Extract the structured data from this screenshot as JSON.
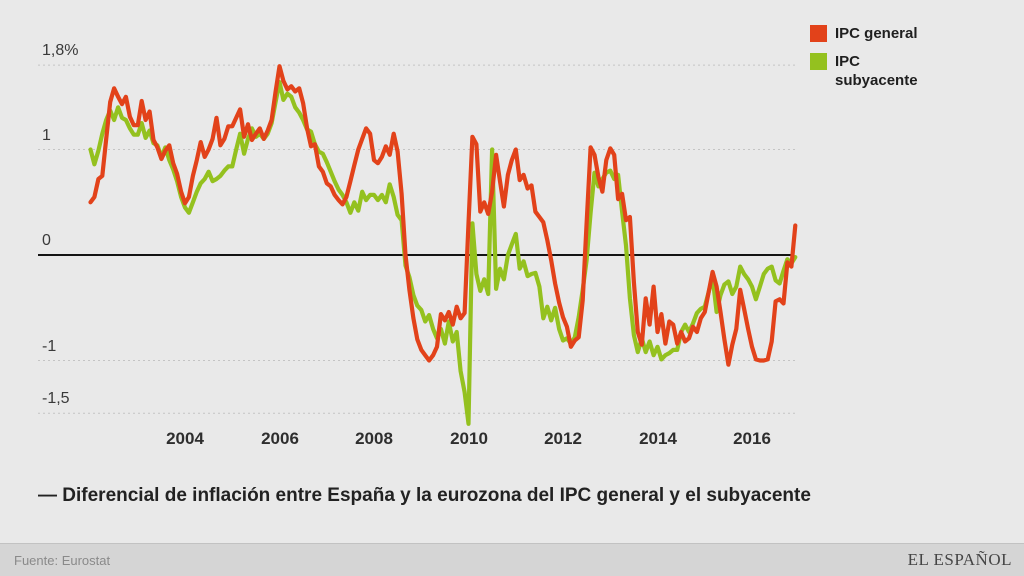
{
  "title": {
    "text": "— Diferencial de inflación entre España y la eurozona del IPC general y el subyacente"
  },
  "footer": {
    "source": "Fuente: Eurostat",
    "brand": "EL ESPAÑOL"
  },
  "colors": {
    "background": "#e9e9e9",
    "footer_background": "#d5d5d5",
    "gridline": "#c4c4c4",
    "zero_line": "#141414"
  },
  "chart_data": {
    "type": "line",
    "title": "— Diferencial de inflación entre España y la eurozona del IPC general y el subyacente",
    "xlabel": "",
    "ylabel": "",
    "unit": "%",
    "grid": "horizontal-dashed",
    "legend_position": "top-right",
    "start_year": 2002,
    "points_per_month": 1,
    "x_range": [
      2002,
      2017
    ],
    "ylim": [
      -1.75,
      2.0
    ],
    "x_ticks": [
      "2004",
      "2006",
      "2008",
      "2010",
      "2012",
      "2014",
      "2016"
    ],
    "x_tick_years": [
      2004,
      2006,
      2008,
      2010,
      2012,
      2014,
      2016
    ],
    "y_ticks": [
      {
        "label": "1,8%",
        "value": 1.8,
        "line": "dashed"
      },
      {
        "label": "1",
        "value": 1.0,
        "line": "dashed"
      },
      {
        "label": "0",
        "value": 0.0,
        "line": "solid"
      },
      {
        "label": "-1",
        "value": -1.0,
        "line": "dashed"
      },
      {
        "label": "-1,5",
        "value": -1.5,
        "line": "dashed"
      }
    ],
    "series": [
      {
        "name": "IPC general",
        "color": "#e2421a",
        "values": [
          0.5,
          0.55,
          0.72,
          0.75,
          1.1,
          1.45,
          1.58,
          1.5,
          1.43,
          1.5,
          1.31,
          1.23,
          1.23,
          1.46,
          1.28,
          1.36,
          1.09,
          1.02,
          0.91,
          0.99,
          1.04,
          0.87,
          0.77,
          0.6,
          0.49,
          0.55,
          0.75,
          0.9,
          1.07,
          0.93,
          1.0,
          1.1,
          1.3,
          1.04,
          1.1,
          1.22,
          1.22,
          1.3,
          1.38,
          1.12,
          1.24,
          1.09,
          1.15,
          1.2,
          1.1,
          1.18,
          1.28,
          1.55,
          1.79,
          1.65,
          1.57,
          1.6,
          1.55,
          1.58,
          1.44,
          1.2,
          1.03,
          1.05,
          0.84,
          0.79,
          0.68,
          0.65,
          0.57,
          0.52,
          0.48,
          0.55,
          0.7,
          0.85,
          1.0,
          1.1,
          1.2,
          1.15,
          0.9,
          0.87,
          0.93,
          1.03,
          0.95,
          1.15,
          0.98,
          0.58,
          0.0,
          -0.33,
          -0.6,
          -0.8,
          -0.9,
          -0.95,
          -1.0,
          -0.95,
          -0.87,
          -0.56,
          -0.62,
          -0.54,
          -0.66,
          -0.49,
          -0.6,
          -0.55,
          0.3,
          1.12,
          1.05,
          0.41,
          0.5,
          0.39,
          0.6,
          0.95,
          0.7,
          0.46,
          0.76,
          0.9,
          1.0,
          0.71,
          0.76,
          0.63,
          0.66,
          0.41,
          0.36,
          0.31,
          0.14,
          -0.05,
          -0.27,
          -0.45,
          -0.59,
          -0.68,
          -0.87,
          -0.81,
          -0.78,
          -0.43,
          0.3,
          1.02,
          0.95,
          0.74,
          0.6,
          0.9,
          1.01,
          0.95,
          0.53,
          0.58,
          0.33,
          0.36,
          -0.26,
          -0.73,
          -0.85,
          -0.41,
          -0.66,
          -0.3,
          -0.73,
          -0.56,
          -0.84,
          -0.63,
          -0.66,
          -0.84,
          -0.73,
          -0.82,
          -0.79,
          -0.68,
          -0.73,
          -0.6,
          -0.54,
          -0.35,
          -0.16,
          -0.3,
          -0.54,
          -0.8,
          -1.04,
          -0.85,
          -0.7,
          -0.33,
          -0.51,
          -0.7,
          -0.87,
          -0.99,
          -1.0,
          -1.0,
          -0.99,
          -0.82,
          -0.44,
          -0.42,
          -0.46,
          -0.07,
          -0.11,
          0.28
        ]
      },
      {
        "name": "IPC subyacente",
        "color": "#94c11f",
        "values": [
          1.0,
          0.86,
          0.99,
          1.15,
          1.28,
          1.37,
          1.28,
          1.4,
          1.3,
          1.28,
          1.2,
          1.14,
          1.14,
          1.25,
          1.11,
          1.18,
          1.06,
          1.04,
          0.93,
          1.02,
          0.9,
          0.81,
          0.7,
          0.55,
          0.45,
          0.4,
          0.5,
          0.6,
          0.68,
          0.72,
          0.79,
          0.7,
          0.72,
          0.75,
          0.8,
          0.84,
          0.84,
          1.0,
          1.15,
          0.96,
          1.1,
          1.2,
          1.12,
          1.15,
          1.1,
          1.15,
          1.25,
          1.45,
          1.64,
          1.47,
          1.53,
          1.5,
          1.4,
          1.35,
          1.28,
          1.19,
          1.17,
          1.05,
          0.98,
          0.96,
          0.88,
          0.79,
          0.7,
          0.62,
          0.57,
          0.5,
          0.4,
          0.5,
          0.42,
          0.6,
          0.52,
          0.57,
          0.57,
          0.52,
          0.57,
          0.5,
          0.67,
          0.55,
          0.38,
          0.33,
          -0.1,
          -0.21,
          -0.38,
          -0.48,
          -0.52,
          -0.63,
          -0.57,
          -0.7,
          -0.79,
          -0.7,
          -0.84,
          -0.63,
          -0.82,
          -0.73,
          -1.1,
          -1.3,
          -1.6,
          0.3,
          -0.18,
          -0.34,
          -0.23,
          -0.37,
          1.0,
          -0.32,
          -0.13,
          -0.23,
          0.0,
          0.1,
          0.2,
          -0.13,
          -0.06,
          -0.2,
          -0.18,
          -0.17,
          -0.3,
          -0.6,
          -0.49,
          -0.62,
          -0.5,
          -0.7,
          -0.81,
          -0.79,
          -0.84,
          -0.78,
          -0.59,
          -0.33,
          -0.05,
          0.4,
          0.78,
          0.65,
          0.72,
          0.78,
          0.8,
          0.72,
          0.76,
          0.41,
          0.09,
          -0.41,
          -0.76,
          -0.92,
          -0.79,
          -0.92,
          -0.82,
          -0.95,
          -0.87,
          -0.99,
          -0.95,
          -0.93,
          -0.9,
          -0.9,
          -0.73,
          -0.66,
          -0.73,
          -0.65,
          -0.55,
          -0.51,
          -0.49,
          -0.35,
          -0.21,
          -0.54,
          -0.38,
          -0.28,
          -0.25,
          -0.37,
          -0.3,
          -0.11,
          -0.18,
          -0.23,
          -0.3,
          -0.42,
          -0.3,
          -0.18,
          -0.13,
          -0.11,
          -0.24,
          -0.27,
          -0.15,
          -0.04,
          -0.08,
          -0.02
        ]
      }
    ]
  }
}
